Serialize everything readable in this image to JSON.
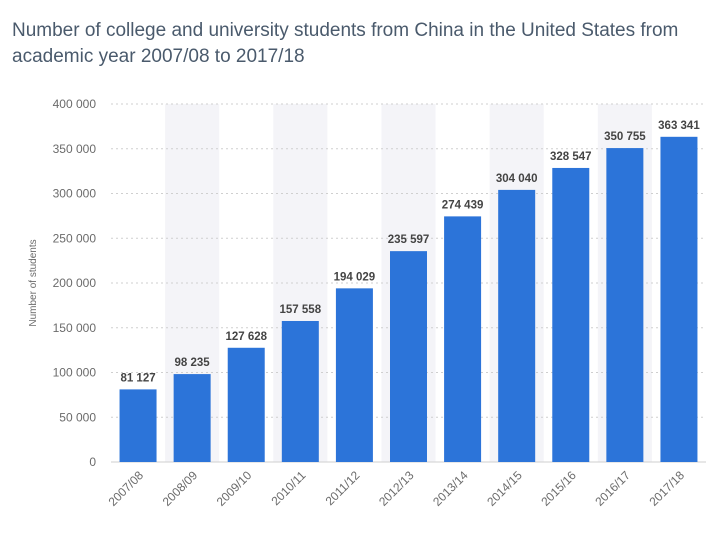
{
  "colors": {
    "bar": "#2c74d9",
    "band": "#f4f4f8",
    "grid": "#cfcfcf"
  },
  "chart_data": {
    "type": "bar",
    "title": "Number of college and university students from China in the United States from academic year 2007/08 to 2017/18",
    "xlabel": "",
    "ylabel": "Number of students",
    "categories": [
      "2007/08",
      "2008/09",
      "2009/10",
      "2010/11",
      "2011/12",
      "2012/13",
      "2013/14",
      "2014/15",
      "2015/16",
      "2016/17",
      "2017/18"
    ],
    "values": [
      81127,
      98235,
      127628,
      157558,
      194029,
      235597,
      274439,
      304040,
      328547,
      350755,
      363341
    ],
    "value_labels": [
      "81 127",
      "98 235",
      "127 628",
      "157 558",
      "194 029",
      "235 597",
      "274 439",
      "304 040",
      "328 547",
      "350 755",
      "363 341"
    ],
    "ylim": [
      0,
      400000
    ],
    "yticks": [
      0,
      50000,
      100000,
      150000,
      200000,
      250000,
      300000,
      350000,
      400000
    ],
    "ytick_labels": [
      "0",
      "50 000",
      "100 000",
      "150 000",
      "200 000",
      "250 000",
      "300 000",
      "350 000",
      "400 000"
    ],
    "grid": true,
    "legend": "none"
  }
}
